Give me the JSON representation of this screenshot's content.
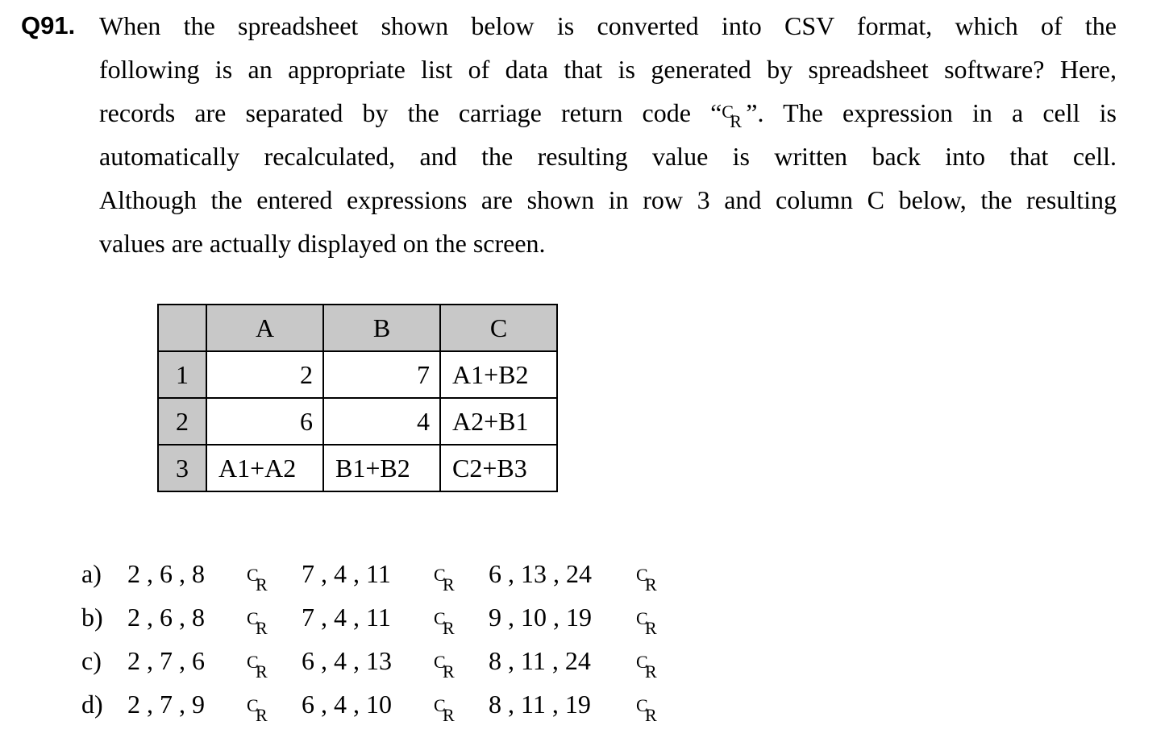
{
  "question": {
    "number": "Q91.",
    "lines": [
      "When the spreadsheet shown below is converted into CSV format, which of the",
      "following is an appropriate list of data that is generated by spreadsheet software?   Here,",
      "records are separated by the carriage return code “",
      "”.   The expression in a cell is",
      "automatically recalculated, and the resulting value is written back into that cell.",
      "Although the entered expressions are shown in row 3 and column C below, the resulting",
      "values are actually displayed on the screen."
    ],
    "cr_symbol": {
      "c": "C",
      "r": "R"
    }
  },
  "spreadsheet": {
    "column_headers": [
      "A",
      "B",
      "C"
    ],
    "rows": [
      {
        "header": "1",
        "cells": [
          "2",
          "7",
          "A1+B2"
        ]
      },
      {
        "header": "2",
        "cells": [
          "6",
          "4",
          "A2+B1"
        ]
      },
      {
        "header": "3",
        "cells": [
          "A1+A2",
          "B1+B2",
          "C2+B3"
        ]
      }
    ]
  },
  "choices": [
    {
      "label": "a)",
      "records": [
        "2 , 6 , 8",
        "7 , 4 , 11",
        "6 , 13 , 24"
      ]
    },
    {
      "label": "b)",
      "records": [
        "2 , 6 , 8",
        "7 , 4 , 11",
        "9 , 10 , 19"
      ]
    },
    {
      "label": "c)",
      "records": [
        "2 , 7 , 6",
        "6 , 4 , 13",
        "8 , 11 , 24"
      ]
    },
    {
      "label": "d)",
      "records": [
        "2 , 7 , 9",
        "6 , 4 , 10",
        "8 , 11 , 19"
      ]
    }
  ]
}
